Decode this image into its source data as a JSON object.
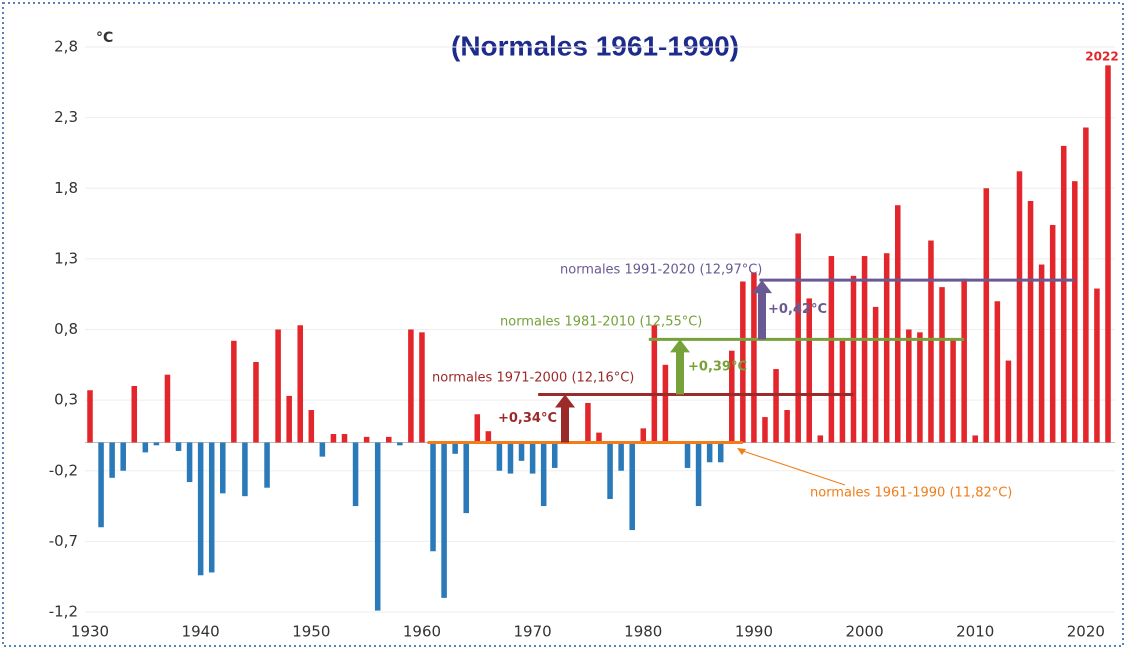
{
  "chart_data": {
    "type": "bar",
    "title": "(Normales 1961-1990)",
    "y_unit": "°C",
    "x": [
      1930,
      1931,
      1932,
      1933,
      1934,
      1935,
      1936,
      1937,
      1938,
      1939,
      1940,
      1941,
      1942,
      1943,
      1944,
      1945,
      1946,
      1947,
      1948,
      1949,
      1950,
      1951,
      1952,
      1953,
      1954,
      1955,
      1956,
      1957,
      1958,
      1959,
      1960,
      1961,
      1962,
      1963,
      1964,
      1965,
      1966,
      1967,
      1968,
      1969,
      1970,
      1971,
      1972,
      1973,
      1974,
      1975,
      1976,
      1977,
      1978,
      1979,
      1980,
      1981,
      1982,
      1983,
      1984,
      1985,
      1986,
      1987,
      1988,
      1989,
      1990,
      1991,
      1992,
      1993,
      1994,
      1995,
      1996,
      1997,
      1998,
      1999,
      2000,
      2001,
      2002,
      2003,
      2004,
      2005,
      2006,
      2007,
      2008,
      2009,
      2010,
      2011,
      2012,
      2013,
      2014,
      2015,
      2016,
      2017,
      2018,
      2019,
      2020,
      2021,
      2022
    ],
    "values": [
      0.37,
      -0.6,
      -0.25,
      -0.2,
      0.4,
      -0.07,
      -0.02,
      0.48,
      -0.06,
      -0.28,
      -0.94,
      -0.92,
      -0.36,
      0.72,
      -0.38,
      0.57,
      -0.32,
      0.8,
      0.33,
      0.83,
      0.23,
      -0.1,
      0.06,
      0.06,
      -0.45,
      0.04,
      -1.19,
      0.04,
      -0.02,
      0.8,
      0.78,
      -0.77,
      -1.1,
      -0.08,
      -0.5,
      0.2,
      0.08,
      -0.2,
      -0.22,
      -0.13,
      -0.22,
      -0.45,
      -0.18,
      0.08,
      0.0,
      0.28,
      0.07,
      -0.4,
      -0.2,
      -0.62,
      0.1,
      0.83,
      0.55,
      0.0,
      -0.18,
      -0.45,
      -0.14,
      -0.14,
      0.65,
      1.14,
      1.2,
      0.18,
      0.52,
      0.23,
      1.48,
      1.02,
      0.05,
      1.32,
      0.72,
      1.18,
      1.32,
      0.96,
      1.34,
      1.68,
      0.8,
      0.78,
      1.43,
      1.1,
      0.73,
      1.16,
      0.05,
      1.8,
      1.0,
      0.58,
      1.92,
      1.71,
      1.26,
      1.54,
      2.1,
      1.85,
      2.23,
      1.09,
      2.67
    ],
    "positive_color": "#e3262b",
    "negative_color": "#2a7ab9",
    "last_label": "2022",
    "ylim": [
      -1.2,
      2.8
    ],
    "yticks": [
      {
        "value": -1.2,
        "label": "-1,2"
      },
      {
        "value": -0.7,
        "label": "-0,7"
      },
      {
        "value": -0.2,
        "label": "-0,2"
      },
      {
        "value": 0.3,
        "label": "0,3"
      },
      {
        "value": 0.8,
        "label": "0,8"
      },
      {
        "value": 1.3,
        "label": "1,3"
      },
      {
        "value": 1.8,
        "label": "1,8"
      },
      {
        "value": 2.3,
        "label": "2,3"
      },
      {
        "value": 2.8,
        "label": "2,8"
      }
    ],
    "xticks": [
      1930,
      1940,
      1950,
      1960,
      1970,
      1980,
      1990,
      2000,
      2010,
      2020
    ],
    "normals": [
      {
        "label": "normales 1961-1990 (11,82°C)",
        "value": 0,
        "period": [
          1961,
          1990
        ],
        "color": "#f07d1a"
      },
      {
        "label": "normales 1971-2000 (12,16°C)",
        "value": 0.34,
        "period": [
          1971,
          2000
        ],
        "color": "#9b2a2a",
        "delta": "+0,34°C"
      },
      {
        "label": "normales 1981-2010 (12,55°C)",
        "value": 0.73,
        "period": [
          1981,
          2010
        ],
        "color": "#77a13a",
        "delta": "+0,39°C"
      },
      {
        "label": "normales 1991-2020 (12,97°C)",
        "value": 1.15,
        "period": [
          1991,
          2020
        ],
        "color": "#6a5a93",
        "delta": "+0,42°C"
      }
    ]
  }
}
